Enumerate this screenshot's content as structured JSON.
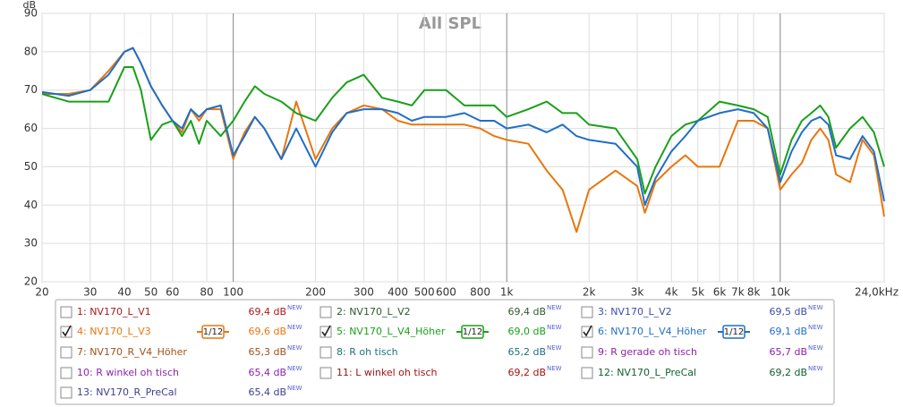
{
  "chart_data": {
    "type": "line",
    "title": "All SPL",
    "y_label": "dB",
    "log_x": true,
    "grid": true,
    "x": [
      20,
      25,
      30,
      35,
      40,
      43,
      46,
      50,
      55,
      60,
      65,
      70,
      75,
      80,
      90,
      100,
      110,
      120,
      130,
      150,
      170,
      200,
      230,
      260,
      300,
      350,
      400,
      450,
      500,
      600,
      700,
      800,
      900,
      1000,
      1200,
      1400,
      1600,
      1800,
      2000,
      2500,
      3000,
      3200,
      3500,
      4000,
      4500,
      5000,
      6000,
      7000,
      8000,
      9000,
      10000,
      11000,
      12000,
      13000,
      14000,
      15000,
      16000,
      18000,
      20000,
      22000,
      24000
    ],
    "series": [
      {
        "color": "#e8760e",
        "values": [
          69,
          69,
          70,
          75,
          80,
          81,
          77,
          71,
          66,
          62,
          59,
          65,
          62,
          65,
          65,
          52,
          59,
          63,
          60,
          52,
          67,
          52,
          60,
          64,
          66,
          65,
          62,
          61,
          61,
          61,
          61,
          60,
          58,
          57,
          56,
          49,
          44,
          33,
          44,
          49,
          45,
          38,
          46,
          50,
          53,
          50,
          50,
          62,
          62,
          60,
          44,
          48,
          51,
          57,
          60,
          57,
          48,
          46,
          57,
          53,
          37
        ]
      },
      {
        "color": "#19a019",
        "values": [
          69,
          67,
          67,
          67,
          76,
          76,
          70,
          57,
          61,
          62,
          58,
          62,
          56,
          62,
          58,
          62,
          67,
          71,
          69,
          67,
          64,
          62,
          68,
          72,
          74,
          68,
          67,
          66,
          70,
          70,
          66,
          66,
          66,
          63,
          65,
          67,
          64,
          64,
          61,
          60,
          52,
          43,
          50,
          58,
          61,
          62,
          67,
          66,
          65,
          63,
          48,
          57,
          62,
          64,
          66,
          63,
          55,
          60,
          63,
          59,
          50
        ]
      },
      {
        "color": "#1f6fc6",
        "values": [
          69.5,
          68.5,
          70,
          74,
          80,
          81,
          77,
          71,
          66,
          62,
          60,
          65,
          63,
          65,
          66,
          53,
          58,
          63,
          60,
          52,
          60,
          50,
          59,
          64,
          65,
          65,
          64,
          62,
          63,
          63,
          64,
          62,
          62,
          60,
          61,
          59,
          61,
          58,
          57,
          56,
          50,
          40,
          47,
          54,
          58,
          62,
          64,
          65,
          64,
          60,
          46,
          54,
          59,
          62,
          63,
          61,
          53,
          52,
          58,
          54,
          41
        ]
      }
    ],
    "xlim": [
      20,
      24000
    ],
    "ylim": [
      20,
      90
    ],
    "xticks": [
      20,
      30,
      40,
      50,
      60,
      80,
      100,
      200,
      300,
      400,
      500,
      600,
      800,
      {
        "value": 1000,
        "label": "1k"
      },
      {
        "value": 2000,
        "label": "2k"
      },
      {
        "value": 3000,
        "label": "3k"
      },
      {
        "value": 4000,
        "label": "4k"
      },
      {
        "value": 5000,
        "label": "5k"
      },
      {
        "value": 6000,
        "label": "6k"
      },
      {
        "value": 7000,
        "label": "7k"
      },
      {
        "value": 8000,
        "label": "8k"
      },
      {
        "value": 10000,
        "label": "10k"
      },
      {
        "value": 24000,
        "label": "24,0kHz"
      }
    ],
    "yticks": [
      20,
      30,
      40,
      50,
      60,
      70,
      80,
      90
    ]
  },
  "legend_panel": {
    "items": [
      {
        "label": "1: NV170_L_V1",
        "level": "69,4 dB",
        "tag": "NEW",
        "color": "#a81c1c",
        "checked": false
      },
      {
        "label": "2: NV170_L_V2",
        "level": "69,4 dB",
        "tag": "NEW",
        "color": "#2f5a2f",
        "checked": false
      },
      {
        "label": "3: NV170_L_V2",
        "level": "69,5 dB",
        "tag": "NEW",
        "color": "#3a4fb0",
        "checked": false
      },
      {
        "label": "4: NV170_L_V3",
        "level": "69,6 dB",
        "tag": "NEW",
        "color": "#e8760e",
        "checked": true,
        "smoothing": "1/12"
      },
      {
        "label": "5: NV170_L_V4_Höher",
        "level": "69,0 dB",
        "tag": "NEW",
        "color": "#19a019",
        "checked": true,
        "smoothing": "1/12"
      },
      {
        "label": "6: NV170_L_V4_Höher",
        "level": "69,1 dB",
        "tag": "NEW",
        "color": "#1f6fc6",
        "checked": true,
        "smoothing": "1/12"
      },
      {
        "label": "7: NV170_R_V4_Höher",
        "level": "65,3 dB",
        "tag": "NEW",
        "color": "#a0521a",
        "checked": false
      },
      {
        "label": "8: R oh tisch",
        "level": "65,2 dB",
        "tag": "NEW",
        "color": "#1f7080",
        "checked": false
      },
      {
        "label": "9: R gerade  oh tisch",
        "level": "65,7 dB",
        "tag": "NEW",
        "color": "#8a24a8",
        "checked": false
      },
      {
        "label": "10: R winkel oh tisch",
        "level": "65,4 dB",
        "tag": "NEW",
        "color": "#8a24b0",
        "checked": false
      },
      {
        "label": "11: L winkel oh tisch",
        "level": "69,2 dB",
        "tag": "NEW",
        "color": "#a01414",
        "checked": false
      },
      {
        "label": "12: NV170_L_PreCal",
        "level": "69,2 dB",
        "tag": "NEW",
        "color": "#146030",
        "checked": false
      },
      {
        "label": "13: NV170_R_PreCal",
        "level": "65,4 dB",
        "tag": "NEW",
        "color": "#404090",
        "checked": false
      }
    ]
  }
}
